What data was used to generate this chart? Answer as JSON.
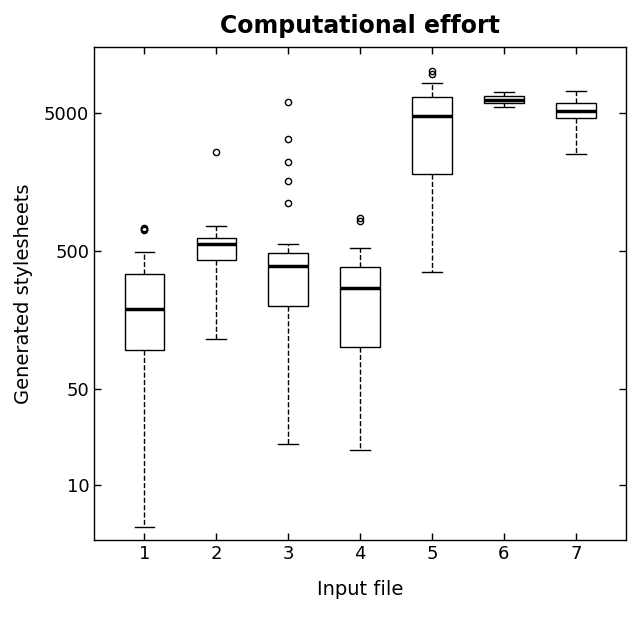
{
  "title": "Computational effort",
  "xlabel": "Input file",
  "ylabel": "Generated stylesheets",
  "title_fontsize": 17,
  "label_fontsize": 14,
  "tick_fontsize": 13,
  "background_color": "#ffffff",
  "box_facecolor": "white",
  "box_edgecolor": "black",
  "categories": [
    1,
    2,
    3,
    4,
    5,
    6,
    7
  ],
  "yticks": [
    10,
    50,
    500,
    5000
  ],
  "ytick_labels": [
    "10",
    "50",
    "500",
    "5000"
  ],
  "ylim_low": 4,
  "ylim_high": 15000,
  "box_stats": [
    {
      "label": "1",
      "whislo": 5,
      "q1": 95,
      "med": 190,
      "q3": 340,
      "whishi": 490,
      "fliers": [
        700,
        720,
        735
      ]
    },
    {
      "label": "2",
      "whislo": 115,
      "q1": 430,
      "med": 560,
      "q3": 620,
      "whishi": 750,
      "fliers": [
        2600
      ]
    },
    {
      "label": "3",
      "whislo": 20,
      "q1": 200,
      "med": 390,
      "q3": 480,
      "whishi": 560,
      "fliers": [
        6000,
        3200,
        2200,
        1600,
        1100
      ]
    },
    {
      "label": "4",
      "whislo": 18,
      "q1": 100,
      "med": 270,
      "q3": 380,
      "whishi": 520,
      "fliers": [
        820,
        860
      ]
    },
    {
      "label": "5",
      "whislo": 350,
      "q1": 1800,
      "med": 4700,
      "q3": 6500,
      "whishi": 8200,
      "fliers": [
        9500,
        10000
      ]
    },
    {
      "label": "6",
      "whislo": 5500,
      "q1": 5900,
      "med": 6200,
      "q3": 6600,
      "whishi": 7000,
      "fliers": []
    },
    {
      "label": "7",
      "whislo": 2500,
      "q1": 4600,
      "med": 5100,
      "q3": 5900,
      "whishi": 7200,
      "fliers": []
    }
  ]
}
